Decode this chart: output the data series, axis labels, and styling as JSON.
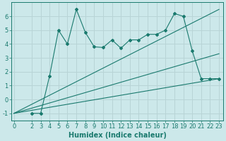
{
  "line1_x": [
    2,
    3,
    4,
    5,
    6,
    7,
    8,
    9,
    10,
    11,
    12,
    13,
    14,
    15,
    16,
    17,
    18,
    19,
    20,
    21,
    22,
    23
  ],
  "line1_y": [
    -1.0,
    -1.0,
    1.7,
    5.0,
    4.0,
    6.5,
    4.85,
    3.8,
    3.75,
    4.3,
    3.7,
    4.3,
    4.3,
    4.7,
    4.7,
    5.0,
    6.2,
    6.0,
    3.5,
    1.5,
    1.5,
    1.5
  ],
  "line2_x": [
    0,
    23
  ],
  "line2_y": [
    -1.0,
    6.5
  ],
  "line3_x": [
    0,
    23
  ],
  "line3_y": [
    -1.0,
    3.3
  ],
  "line4_x": [
    0,
    23
  ],
  "line4_y": [
    -1.0,
    1.5
  ],
  "color": "#1a7a6e",
  "bg_color": "#cce8ea",
  "grid_color": "#b8d4d6",
  "xlabel": "Humidex (Indice chaleur)",
  "xlim": [
    -0.3,
    23.5
  ],
  "ylim": [
    -1.5,
    7.0
  ],
  "xticks": [
    0,
    2,
    3,
    4,
    5,
    6,
    7,
    8,
    9,
    10,
    11,
    12,
    13,
    14,
    15,
    16,
    17,
    18,
    19,
    20,
    21,
    22,
    23
  ],
  "yticks": [
    -1,
    0,
    1,
    2,
    3,
    4,
    5,
    6
  ],
  "xlabel_fontsize": 7,
  "tick_fontsize": 6
}
